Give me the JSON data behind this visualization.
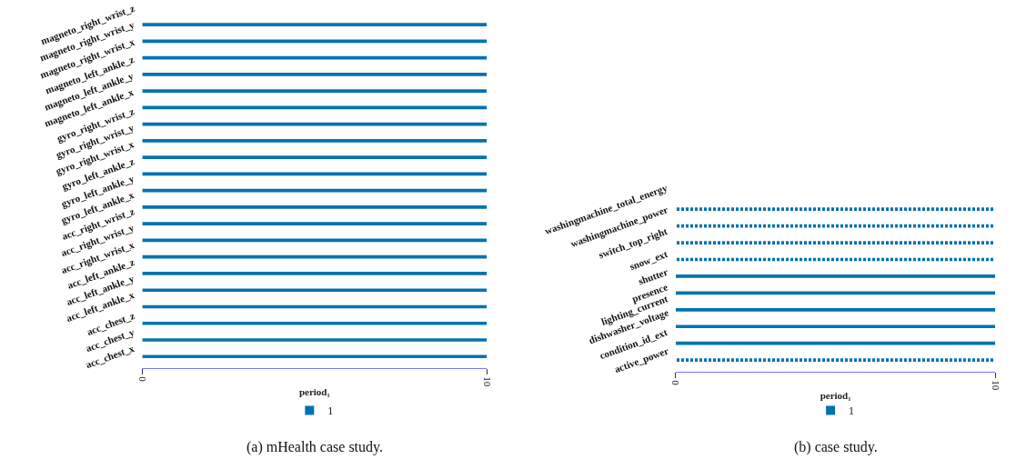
{
  "chart_data": [
    {
      "type": "bar",
      "orientation": "horizontal",
      "xlabel": "period₁",
      "xlim": [
        0,
        10
      ],
      "xticks": [
        0,
        10
      ],
      "legend": "bottom",
      "annotations": [
        "(a) mHealth case study."
      ],
      "categories": [
        "magneto_right_wrist_z",
        "magneto_right_wrist_y",
        "magneto_right_wrist_x",
        "magneto_left_ankle_z",
        "magneto_left_ankle_y",
        "magneto_left_ankle_x",
        "gyro_right_wrist_z",
        "gyro_right_wrist_y",
        "gyro_right_wrist_x",
        "gyro_left_ankle_z",
        "gyro_left_ankle_y",
        "gyro_left_ankle_x",
        "acc_right_wrist_z",
        "acc_right_wrist_y",
        "acc_right_wrist_x",
        "acc_left_ankle_z",
        "acc_left_ankle_y",
        "acc_left_ankle_x",
        "acc_chest_z",
        "acc_chest_y",
        "acc_chest_x"
      ],
      "series": [
        {
          "name": "1",
          "color": "#0072b2",
          "line_style": "solid",
          "values": [
            10,
            10,
            10,
            10,
            10,
            10,
            10,
            10,
            10,
            10,
            10,
            10,
            10,
            10,
            10,
            10,
            10,
            10,
            10,
            10,
            10
          ]
        }
      ]
    },
    {
      "type": "bar",
      "orientation": "horizontal",
      "xlabel": "period₁",
      "xlim": [
        0,
        10
      ],
      "xticks": [
        0,
        10
      ],
      "legend": "bottom",
      "annotations": [
        "(b) case study."
      ],
      "categories": [
        "washingmachine_total_energy",
        "washingmachine_power",
        "switch_top_right",
        "snow_ext",
        "shutter",
        "presence",
        "lighting_current",
        "dishwasher_voltage",
        "condition_id_ext",
        "active_power"
      ],
      "series": [
        {
          "name": "1",
          "color": "#0072b2",
          "line_style": "solid",
          "values": [
            null,
            null,
            null,
            null,
            10,
            10,
            10,
            10,
            10,
            null
          ]
        },
        {
          "color": "#0072b2",
          "line_style": "dotted",
          "values": [
            10,
            10,
            10,
            10,
            null,
            null,
            null,
            null,
            null,
            10
          ]
        }
      ]
    }
  ]
}
